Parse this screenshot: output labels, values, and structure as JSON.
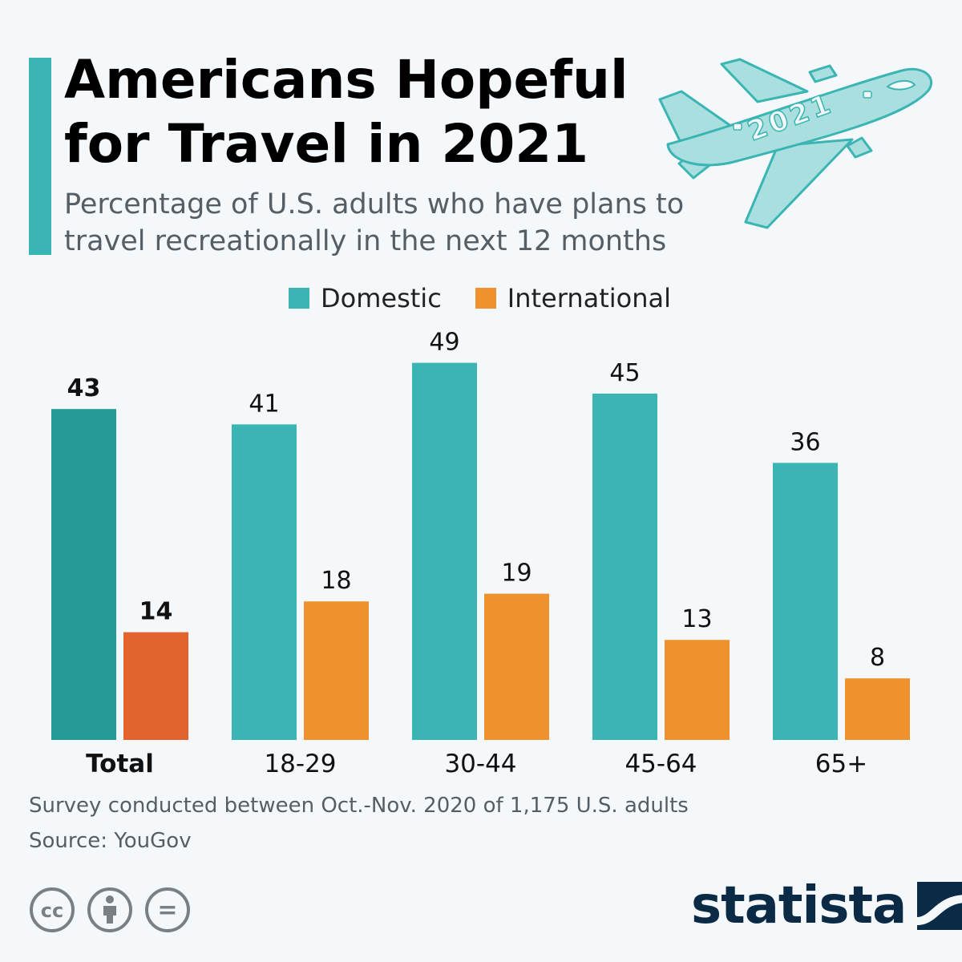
{
  "header": {
    "title_line1": "Americans Hopeful",
    "title_line2": "for Travel in 2021",
    "subtitle_line1": "Percentage of U.S. adults who have plans to",
    "subtitle_line2": "travel recreationally in the next 12 months",
    "plane_label": "2021"
  },
  "legend": [
    {
      "label": "Domestic",
      "color": "#3ab5b3"
    },
    {
      "label": "International",
      "color": "#ef922e"
    }
  ],
  "chart_data": {
    "type": "bar",
    "title": "Americans Hopeful for Travel in 2021",
    "subtitle": "Percentage of U.S. adults who have plans to travel recreationally in the next 12 months",
    "xlabel": "",
    "ylabel": "",
    "ylim": [
      0,
      50
    ],
    "grid": false,
    "legend_position": "top-center",
    "categories": [
      "Total",
      "18-29",
      "30-44",
      "45-64",
      "65+"
    ],
    "series": [
      {
        "name": "Domestic",
        "values": [
          43,
          41,
          49,
          45,
          36
        ],
        "color": "#3ab5b3",
        "highlight_color": "#269a97"
      },
      {
        "name": "International",
        "values": [
          14,
          18,
          19,
          13,
          8
        ],
        "color": "#ef922e",
        "highlight_color": "#e2632d"
      }
    ],
    "highlight_category": "Total"
  },
  "footer": {
    "survey_note": "Survey conducted between Oct.-Nov. 2020 of 1,175 U.S. adults",
    "source": "Source: YouGov",
    "license_icons": [
      "cc-icon",
      "attribution-icon",
      "no-derivatives-icon"
    ],
    "license_glyphs": [
      "cc",
      "="
    ],
    "brand": "statista"
  }
}
